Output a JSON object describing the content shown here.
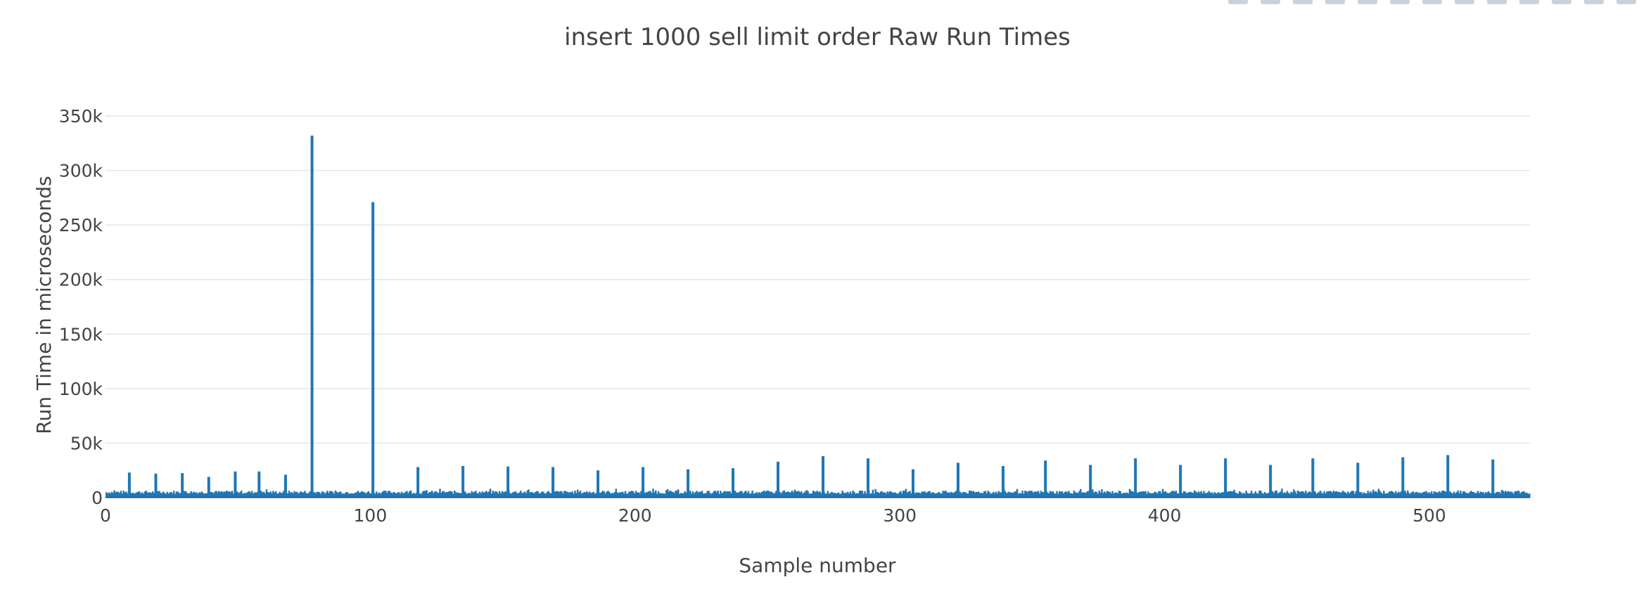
{
  "chart_data": {
    "type": "bar",
    "title": "insert 1000 sell limit order Raw Run Times",
    "xlabel": "Sample number",
    "ylabel": "Run Time in microseconds",
    "xlim": [
      0,
      538
    ],
    "ylim": [
      0,
      350000
    ],
    "x_ticks": [
      0,
      100,
      200,
      300,
      400,
      500
    ],
    "x_tick_labels": [
      "0",
      "100",
      "200",
      "300",
      "400",
      "500"
    ],
    "y_ticks": [
      0,
      50000,
      100000,
      150000,
      200000,
      250000,
      300000,
      350000
    ],
    "y_tick_labels": [
      "0",
      "50k",
      "100k",
      "150k",
      "200k",
      "250k",
      "300k",
      "350k"
    ],
    "grid": true,
    "legend": "none",
    "color": "#1f77b4",
    "baseline_range": [
      3500,
      6500
    ],
    "spikes": [
      {
        "x": 9,
        "y": 23000
      },
      {
        "x": 19,
        "y": 22000
      },
      {
        "x": 29,
        "y": 22500
      },
      {
        "x": 39,
        "y": 19000
      },
      {
        "x": 49,
        "y": 24000
      },
      {
        "x": 58,
        "y": 24000
      },
      {
        "x": 68,
        "y": 21000
      },
      {
        "x": 78,
        "y": 332000
      },
      {
        "x": 101,
        "y": 271000
      },
      {
        "x": 118,
        "y": 28000
      },
      {
        "x": 135,
        "y": 29000
      },
      {
        "x": 152,
        "y": 28500
      },
      {
        "x": 169,
        "y": 28000
      },
      {
        "x": 186,
        "y": 25000
      },
      {
        "x": 203,
        "y": 28000
      },
      {
        "x": 220,
        "y": 26000
      },
      {
        "x": 237,
        "y": 27000
      },
      {
        "x": 254,
        "y": 33000
      },
      {
        "x": 271,
        "y": 38000
      },
      {
        "x": 288,
        "y": 36000
      },
      {
        "x": 305,
        "y": 26000
      },
      {
        "x": 322,
        "y": 32000
      },
      {
        "x": 339,
        "y": 29000
      },
      {
        "x": 355,
        "y": 34000
      },
      {
        "x": 372,
        "y": 30000
      },
      {
        "x": 389,
        "y": 36000
      },
      {
        "x": 406,
        "y": 30000
      },
      {
        "x": 423,
        "y": 36000
      },
      {
        "x": 440,
        "y": 30000
      },
      {
        "x": 456,
        "y": 36000
      },
      {
        "x": 473,
        "y": 32000
      },
      {
        "x": 490,
        "y": 37000
      },
      {
        "x": 507,
        "y": 39000
      },
      {
        "x": 524,
        "y": 35000
      }
    ]
  },
  "modebar": {
    "buttons": [
      "camera-icon",
      "zoom-icon",
      "pan-icon",
      "select-box-icon",
      "lasso-icon",
      "zoom-in-icon",
      "zoom-out-icon",
      "autoscale-icon",
      "reset-axes-icon",
      "spike-lines-icon",
      "hover-closest-icon",
      "hover-compare-icon",
      "plotly-logo-icon"
    ]
  }
}
